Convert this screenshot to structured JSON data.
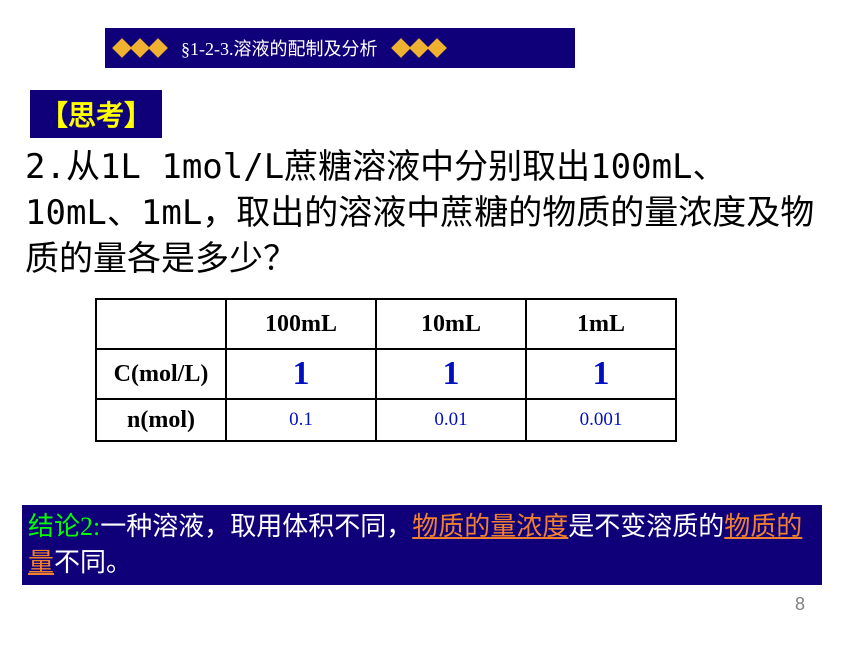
{
  "header": {
    "title": "§1-2-3.溶液的配制及分析",
    "diamond_color": "#f0b030",
    "bar_color": "#0f007a",
    "text_color": "#ffffff"
  },
  "think_label": "【思考】",
  "question": "2.从1L 1mol/L蔗糖溶液中分别取出100mL、10mL、1mL，取出的溶液中蔗糖的物质的量浓度及物质的量各是多少？",
  "table": {
    "columns": [
      "100mL",
      "10mL",
      "1mL"
    ],
    "rows": [
      {
        "label": "C(mol/L)",
        "values": [
          "1",
          "1",
          "1"
        ],
        "value_class": "val-blue"
      },
      {
        "label": "n(mol)",
        "values": [
          "0.1",
          "0.01",
          "0.001"
        ],
        "value_class": "val-small"
      }
    ],
    "border_color": "#000000",
    "header_fontsize": 24,
    "value_blue_fontsize": 34,
    "value_small_fontsize": 19,
    "value_color": "#0010c0"
  },
  "conclusion": {
    "prefix": "结论2:",
    "part1": "一种溶液，取用体积不同，",
    "highlight1": "物质的量浓度",
    "part2": "是不变溶质的",
    "highlight2": "物质的量",
    "part3": "不同。",
    "bg_color": "#0f007a",
    "text_color": "#ffffff",
    "prefix_color": "#00ff00",
    "highlight_color": "#f08030"
  },
  "page_number": "8"
}
